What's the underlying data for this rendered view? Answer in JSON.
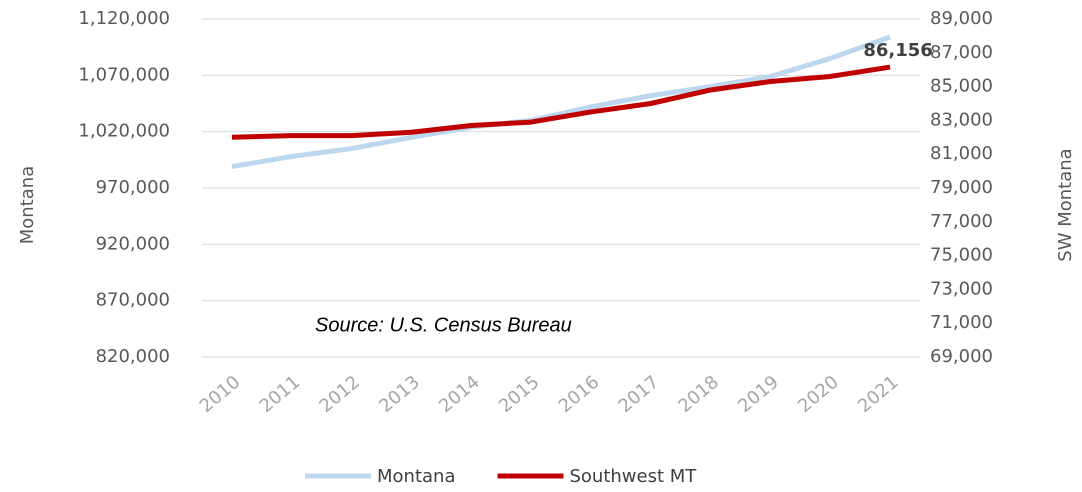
{
  "chart_data": {
    "type": "line",
    "categories": [
      "2010",
      "2011",
      "2012",
      "2013",
      "2014",
      "2015",
      "2016",
      "2017",
      "2018",
      "2019",
      "2020",
      "2021"
    ],
    "series": [
      {
        "name": "Montana",
        "color": "#bdd7ee",
        "axis": "y",
        "values": [
          989000,
          998000,
          1005000,
          1015000,
          1024000,
          1030000,
          1042000,
          1052000,
          1060000,
          1069000,
          1085000,
          1104000
        ]
      },
      {
        "name": "Southwest MT",
        "color": "#c00000",
        "axis": "y2",
        "values": [
          82000,
          82100,
          82100,
          82300,
          82700,
          82900,
          83500,
          84000,
          84800,
          85300,
          85600,
          86156
        ],
        "value_labels": [
          null,
          null,
          null,
          null,
          null,
          null,
          null,
          null,
          null,
          null,
          null,
          "86,156"
        ]
      }
    ],
    "ylabel": "Montana",
    "y2label": "SW Montana",
    "annotation": "Source:  U.S. Census Bureau",
    "ylim": [
      820000,
      1120000
    ],
    "yticks": [
      {
        "value": 820000,
        "label": "820,000"
      },
      {
        "value": 870000,
        "label": "870,000"
      },
      {
        "value": 920000,
        "label": "920,000"
      },
      {
        "value": 970000,
        "label": "970,000"
      },
      {
        "value": 1020000,
        "label": "1,020,000"
      },
      {
        "value": 1070000,
        "label": "1,070,000"
      },
      {
        "value": 1120000,
        "label": "1,120,000"
      }
    ],
    "y2lim": [
      69000,
      89000
    ],
    "y2ticks": [
      {
        "value": 69000,
        "label": "69,000"
      },
      {
        "value": 71000,
        "label": "71,000"
      },
      {
        "value": 73000,
        "label": "73,000"
      },
      {
        "value": 75000,
        "label": "75,000"
      },
      {
        "value": 77000,
        "label": "77,000"
      },
      {
        "value": 79000,
        "label": "79,000"
      },
      {
        "value": 81000,
        "label": "81,000"
      },
      {
        "value": 83000,
        "label": "83,000"
      },
      {
        "value": 85000,
        "label": "85,000"
      },
      {
        "value": 87000,
        "label": "87,000"
      },
      {
        "value": 89000,
        "label": "89,000"
      }
    ],
    "grid": true,
    "legend": "bottom"
  }
}
